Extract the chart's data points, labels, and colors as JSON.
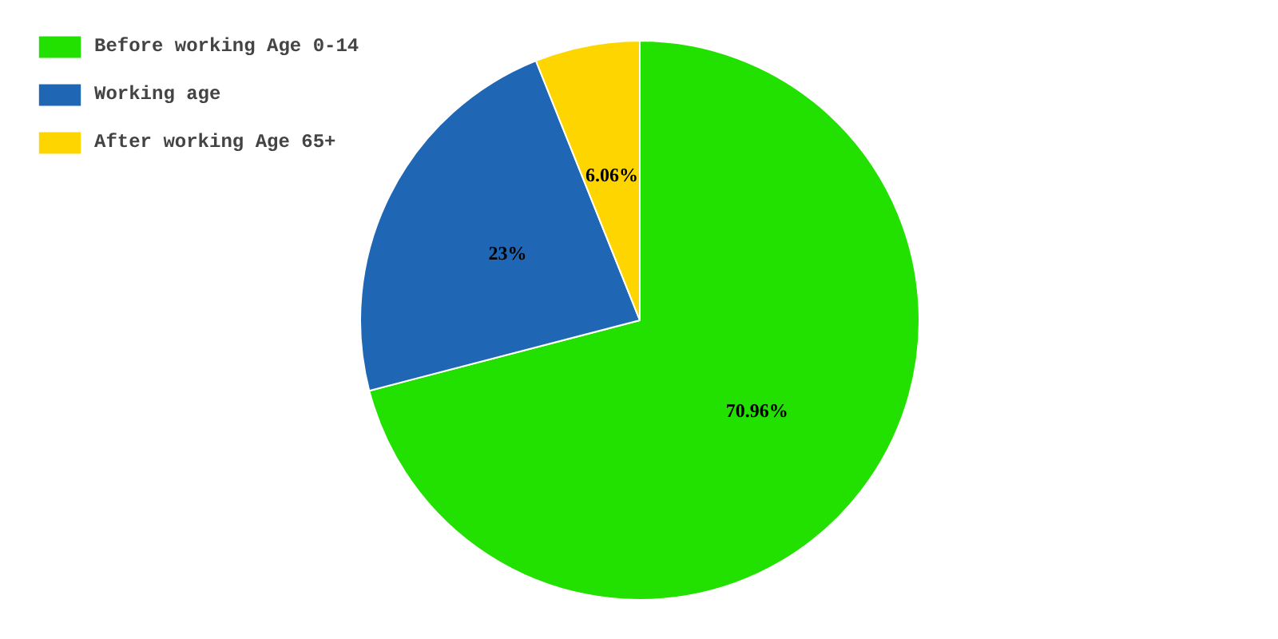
{
  "chart_data": {
    "type": "pie",
    "categories": [
      "Before working Age 0-14",
      "Working age",
      "After working Age 65+"
    ],
    "values": [
      70.96,
      23,
      6.06
    ],
    "colors": [
      "#22e000",
      "#1f66b5",
      "#ffd500"
    ],
    "value_labels": [
      "70.96%",
      "23%",
      "6.06%"
    ],
    "legend": "top left"
  }
}
